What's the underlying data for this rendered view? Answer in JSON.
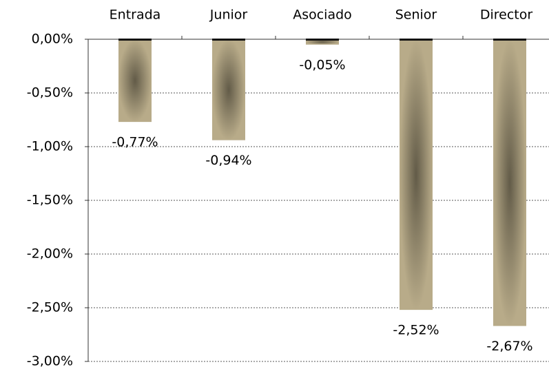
{
  "chart_data": {
    "type": "bar",
    "categories": [
      "Entrada",
      "Junior",
      "Asociado",
      "Senior",
      "Director"
    ],
    "values": [
      -0.77,
      -0.94,
      -0.05,
      -2.52,
      -2.67
    ],
    "value_labels": [
      "-0,77%",
      "-0,94%",
      "-0,05%",
      "-2,52%",
      "-2,67%"
    ],
    "color": "#b3a684",
    "ylim": [
      -3,
      0
    ],
    "yticks": [
      {
        "value": 0,
        "label": "0,00%"
      },
      {
        "value": -0.5,
        "label": "-0,50%"
      },
      {
        "value": -1,
        "label": "-1,00%"
      },
      {
        "value": -1.5,
        "label": "-1,50%"
      },
      {
        "value": -2,
        "label": "-2,00%"
      },
      {
        "value": -2.5,
        "label": "-2,50%"
      },
      {
        "value": -3,
        "label": "-3,00%"
      }
    ],
    "grid": true
  }
}
